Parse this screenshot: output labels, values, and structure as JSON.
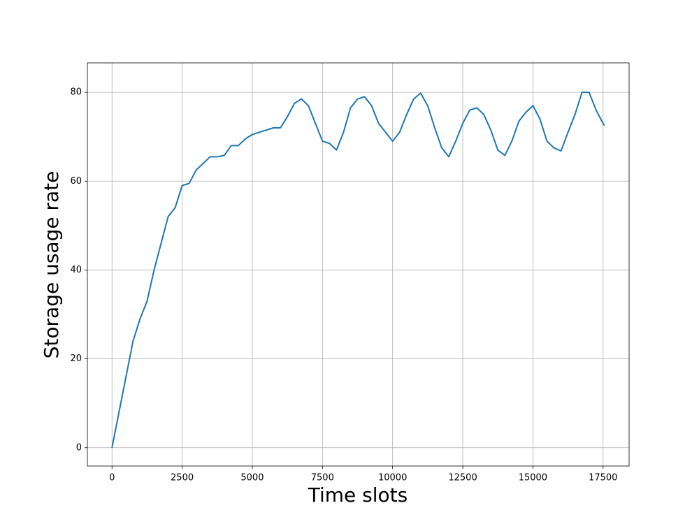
{
  "chart_data": {
    "type": "line",
    "x_label": "Time slots",
    "y_label": "Storage usage rate",
    "x": [
      0,
      250,
      500,
      750,
      1000,
      1250,
      1500,
      1750,
      2000,
      2250,
      2500,
      2750,
      3000,
      3250,
      3500,
      3750,
      4000,
      4250,
      4500,
      4750,
      5000,
      5250,
      5500,
      5750,
      6000,
      6250,
      6500,
      6750,
      7000,
      7250,
      7500,
      7750,
      8000,
      8250,
      8500,
      8750,
      9000,
      9250,
      9500,
      9750,
      10000,
      10250,
      10500,
      10750,
      11000,
      11250,
      11500,
      11750,
      12000,
      12250,
      12500,
      12750,
      13000,
      13250,
      13500,
      13750,
      14000,
      14250,
      14500,
      14750,
      15000,
      15250,
      15500,
      15750,
      16000,
      16250,
      16500,
      16750,
      17000,
      17250,
      17500,
      17550
    ],
    "values": [
      0,
      8,
      16,
      24,
      29,
      33,
      40,
      46,
      52,
      54,
      59,
      59.5,
      62.5,
      64,
      65.5,
      65.5,
      65.8,
      68,
      68,
      69.5,
      70.5,
      71,
      71.5,
      72,
      72,
      74.5,
      77.5,
      78.5,
      77,
      73,
      69,
      68.5,
      67,
      71,
      76.5,
      78.5,
      79,
      77,
      73,
      71,
      69,
      71,
      75,
      78.5,
      79.8,
      77,
      72,
      67.5,
      65.5,
      69,
      73,
      76,
      76.5,
      75,
      71.5,
      67,
      65.8,
      69,
      73.5,
      75.5,
      77,
      74,
      69,
      67.5,
      66.8,
      71,
      75,
      80,
      80,
      76,
      73,
      72.5
    ],
    "color": "#1f77b4",
    "xlim": [
      -877.5,
      18427.5
    ],
    "ylim": [
      -4.125,
      86.625
    ],
    "xticks": [
      0,
      2500,
      5000,
      7500,
      10000,
      12500,
      15000,
      17500
    ],
    "yticks": [
      0,
      20,
      40,
      60,
      80
    ],
    "grid": true
  }
}
